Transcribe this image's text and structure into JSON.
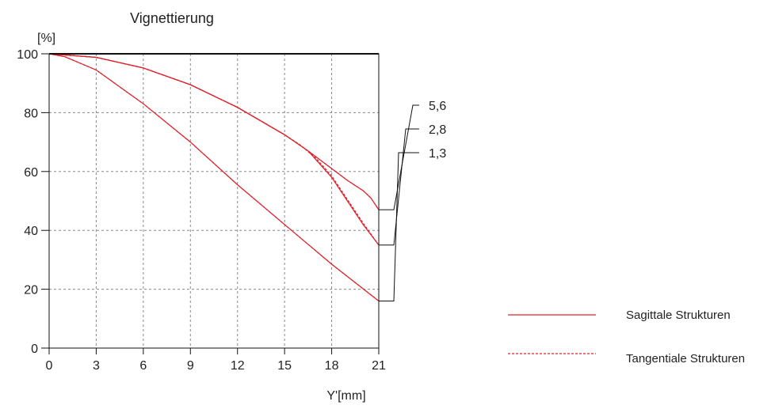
{
  "chart_data": {
    "type": "line",
    "title": "Vignettierung",
    "ylabel": "[%]",
    "xlabel": "Y'[mm]",
    "xlim": [
      0,
      21
    ],
    "ylim": [
      0,
      100
    ],
    "xticks": [
      0,
      3,
      6,
      9,
      12,
      15,
      18,
      21
    ],
    "yticks": [
      0,
      20,
      40,
      60,
      80,
      100
    ],
    "grid": true,
    "colors": {
      "curve": "#e0202a",
      "axis": "#111111",
      "grid": "#888888",
      "leader": "#111111"
    },
    "series": [
      {
        "name": "5,6",
        "style": "sagittal",
        "x": [
          0,
          3,
          6,
          9,
          12,
          15,
          16.5,
          18,
          19,
          20,
          20.5,
          21
        ],
        "y": [
          100,
          98.8,
          95.2,
          89.5,
          81.8,
          72.5,
          67,
          61,
          57,
          53.5,
          51,
          47
        ]
      },
      {
        "name": "5,6",
        "style": "tangential",
        "x": [
          0,
          3,
          6,
          9,
          12,
          15,
          16.5,
          18,
          19,
          20,
          20.5,
          21
        ],
        "y": [
          100,
          98.8,
          95.2,
          89.5,
          81.8,
          72.5,
          67,
          61,
          57,
          53.5,
          51,
          47
        ]
      },
      {
        "name": "2,8",
        "style": "sagittal",
        "x": [
          0,
          3,
          6,
          9,
          12,
          15,
          16.5,
          18,
          19,
          20,
          21
        ],
        "y": [
          100,
          98.8,
          95.2,
          89.5,
          81.8,
          72.5,
          67,
          58,
          50,
          42,
          35
        ]
      },
      {
        "name": "2,8",
        "style": "tangential",
        "x": [
          0,
          3,
          6,
          9,
          12,
          15,
          16,
          17,
          18,
          19,
          20,
          21
        ],
        "y": [
          100,
          98.8,
          95.2,
          89.5,
          81.8,
          72.5,
          69,
          64.5,
          58.5,
          50.5,
          42.5,
          35
        ]
      },
      {
        "name": "1,3",
        "style": "sagittal",
        "x": [
          0,
          1,
          3,
          6,
          9,
          12,
          15,
          18,
          21
        ],
        "y": [
          100,
          99,
          94.5,
          83,
          70,
          55.5,
          42,
          28.5,
          16
        ]
      },
      {
        "name": "1,3",
        "style": "tangential",
        "x": [
          0,
          1,
          3,
          6,
          9,
          12,
          15,
          18,
          21
        ],
        "y": [
          100,
          99,
          94.5,
          83,
          70,
          55.5,
          42,
          28.5,
          16
        ]
      }
    ],
    "curve_labels": [
      "5,6",
      "2,8",
      "1,3"
    ],
    "legend": {
      "placement": "bottom-right",
      "entries": [
        {
          "label": "Sagittale Strukturen",
          "style": "solid"
        },
        {
          "label": "Tangentiale Strukturen",
          "style": "dashed"
        }
      ]
    }
  }
}
